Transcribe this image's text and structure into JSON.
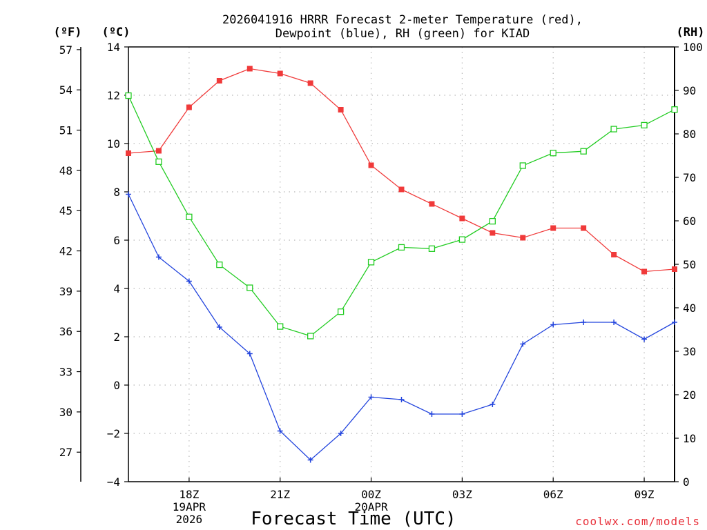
{
  "chart_data": {
    "type": "line",
    "title_line1": "2026041916 HRRR Forecast 2-meter Temperature (red),",
    "title_line2": "Dewpoint (blue), RH (green) for KIAD",
    "xlabel": "Forecast Time (UTC)",
    "credit": "coolwx.com/models",
    "units": {
      "fahrenheit": "(ºF)",
      "celsius": "(ºC)",
      "rh": "(RH)"
    },
    "x": [
      16,
      17,
      18,
      19,
      20,
      21,
      22,
      23,
      24,
      25,
      26,
      27,
      28,
      29,
      30,
      31,
      32,
      33,
      34
    ],
    "xlim": [
      16,
      34
    ],
    "x_ticks": [
      {
        "x": 18,
        "label": "18Z",
        "sub": [
          "19APR",
          "2026"
        ]
      },
      {
        "x": 21,
        "label": "21Z",
        "sub": []
      },
      {
        "x": 24,
        "label": "00Z",
        "sub": [
          "20APR"
        ]
      },
      {
        "x": 27,
        "label": "03Z",
        "sub": []
      },
      {
        "x": 30,
        "label": "06Z",
        "sub": []
      },
      {
        "x": 33,
        "label": "09Z",
        "sub": []
      }
    ],
    "ylim_celsius": [
      -4,
      14
    ],
    "ylim_rh": [
      0,
      100
    ],
    "ylim_fahrenheit": [
      24.8,
      57.2
    ],
    "celsius_ticks": [
      -4,
      -2,
      0,
      2,
      4,
      6,
      8,
      10,
      12,
      14
    ],
    "fahrenheit_ticks": [
      27,
      30,
      33,
      36,
      39,
      42,
      45,
      48,
      51,
      54,
      57
    ],
    "rh_ticks": [
      0,
      10,
      20,
      30,
      40,
      50,
      60,
      70,
      80,
      90,
      100
    ],
    "grid": true,
    "series": [
      {
        "name": "Temperature",
        "axis": "celsius",
        "color": "#f03a3a",
        "marker": "filled-square",
        "values": [
          9.6,
          9.7,
          11.5,
          12.6,
          13.1,
          12.9,
          12.5,
          11.4,
          9.1,
          8.1,
          7.5,
          6.9,
          6.3,
          6.1,
          6.5,
          6.5,
          5.4,
          4.7,
          4.8
        ]
      },
      {
        "name": "Dewpoint",
        "axis": "celsius",
        "color": "#2244dd",
        "marker": "plus",
        "values": [
          7.9,
          5.3,
          4.3,
          2.4,
          1.3,
          -1.9,
          -3.1,
          -2.0,
          -0.5,
          -0.6,
          -1.2,
          -1.2,
          -0.8,
          1.7,
          2.5,
          2.6,
          2.6,
          1.9,
          2.6
        ]
      },
      {
        "name": "RH",
        "axis": "rh",
        "color": "#22cc22",
        "marker": "open-square",
        "values": [
          88.8,
          73.6,
          60.9,
          49.9,
          44.6,
          35.7,
          33.5,
          39.1,
          50.5,
          53.9,
          53.6,
          55.7,
          59.9,
          72.7,
          75.6,
          76.0,
          81.1,
          82.0,
          85.6
        ]
      }
    ]
  }
}
